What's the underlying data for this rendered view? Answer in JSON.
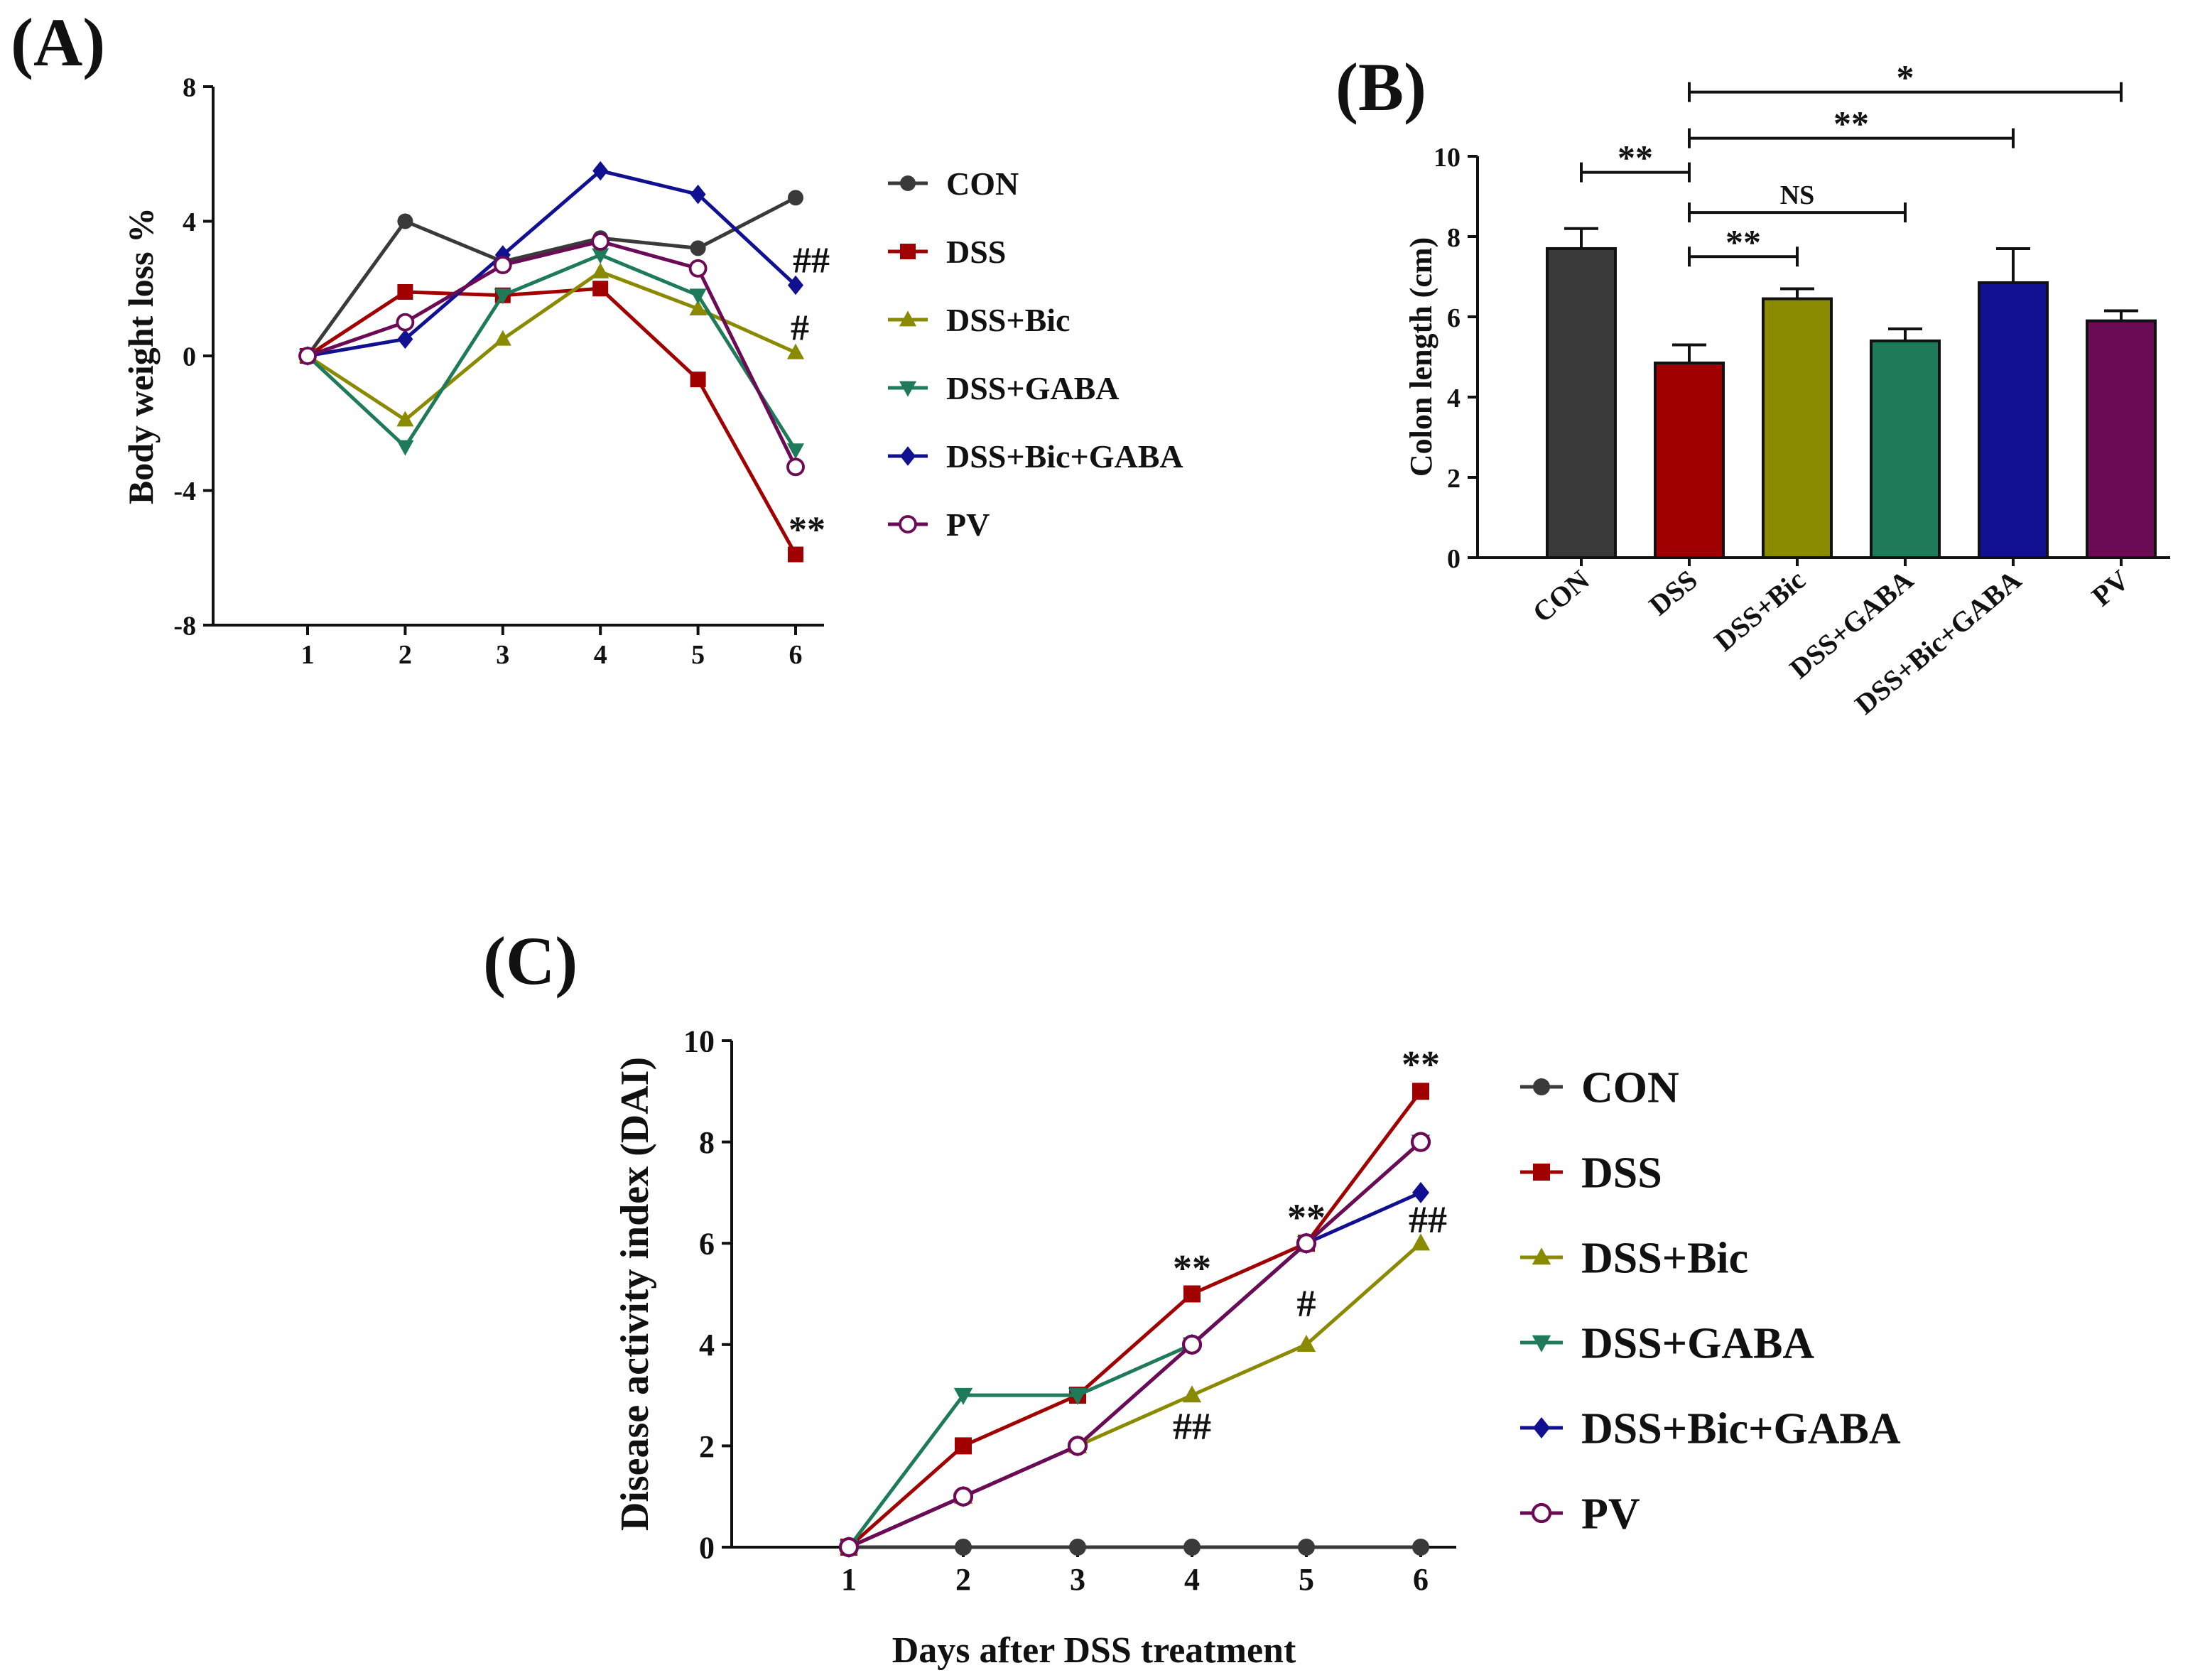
{
  "colors": {
    "CON": "#3a3a3a",
    "DSS": "#a00000",
    "DSS+Bic": "#8a8a00",
    "DSS+GABA": "#1f7a5a",
    "DSS+Bic+GABA": "#101090",
    "PV": "#6b0a55"
  },
  "chart_data": [
    {
      "panel_label": "(A)",
      "type": "line",
      "title": "",
      "xlabel": "",
      "ylabel": "Body weight loss %",
      "x": [
        1,
        2,
        3,
        4,
        5,
        6
      ],
      "x_tick_labels": [
        "1",
        "2",
        "3",
        "4",
        "5",
        "6"
      ],
      "ylim": [
        -8,
        8
      ],
      "y_ticks": [
        -8,
        -4,
        0,
        4,
        8
      ],
      "y_tick_labels": [
        "-8",
        "-4",
        "0",
        "4",
        "8"
      ],
      "legend_position": "right",
      "series": [
        {
          "name": "CON",
          "marker": "circle",
          "values": [
            0,
            4.0,
            2.8,
            3.5,
            3.2,
            4.7
          ]
        },
        {
          "name": "DSS",
          "marker": "square",
          "values": [
            0,
            1.9,
            1.8,
            2.0,
            -0.7,
            -5.9
          ]
        },
        {
          "name": "DSS+Bic",
          "marker": "triangle-up",
          "values": [
            0,
            -1.9,
            0.5,
            2.5,
            1.4,
            0.1
          ]
        },
        {
          "name": "DSS+GABA",
          "marker": "triangle-down",
          "values": [
            0,
            -2.7,
            1.8,
            3.0,
            1.8,
            -2.8
          ]
        },
        {
          "name": "DSS+Bic+GABA",
          "marker": "diamond",
          "values": [
            0,
            0.5,
            3.0,
            5.5,
            4.8,
            2.1
          ]
        },
        {
          "name": "PV",
          "marker": "circle-open",
          "values": [
            0,
            1.0,
            2.7,
            3.4,
            2.6,
            -3.3
          ]
        }
      ],
      "annotations": [
        {
          "text": "##",
          "x": 6,
          "y": 2.1
        },
        {
          "text": "#",
          "x": 6,
          "y": 0.1
        },
        {
          "text": "**",
          "x": 6,
          "y": -5.9
        }
      ]
    },
    {
      "panel_label": "(B)",
      "type": "bar",
      "title": "",
      "xlabel": "",
      "ylabel": "Colon length (cm)",
      "categories": [
        "CON",
        "DSS",
        "DSS+Bic",
        "DSS+GABA",
        "DSS+Bic+GABA",
        "PV"
      ],
      "values": [
        7.7,
        4.85,
        6.45,
        5.4,
        6.85,
        5.9
      ],
      "errors": [
        0.5,
        0.45,
        0.25,
        0.3,
        0.85,
        0.25
      ],
      "ylim": [
        0,
        10
      ],
      "y_ticks": [
        0,
        2,
        4,
        6,
        8,
        10
      ],
      "y_tick_labels": [
        "0",
        "2",
        "4",
        "6",
        "8",
        "10"
      ],
      "significance": [
        {
          "from": 0,
          "to": 1,
          "y": 9.6,
          "label": "**"
        },
        {
          "from": 1,
          "to": 2,
          "y": 7.5,
          "label": "**"
        },
        {
          "from": 1,
          "to": 3,
          "y": 8.6,
          "label": "NS"
        },
        {
          "from": 1,
          "to": 4,
          "y": 10.45,
          "label": "**"
        },
        {
          "from": 1,
          "to": 5,
          "y": 11.6,
          "label": "*"
        }
      ]
    },
    {
      "panel_label": "(C)",
      "type": "line",
      "title": "",
      "xlabel": "Days after DSS treatment",
      "ylabel": "Disease activity index (DAI)",
      "x": [
        1,
        2,
        3,
        4,
        5,
        6
      ],
      "x_tick_labels": [
        "1",
        "2",
        "3",
        "4",
        "5",
        "6"
      ],
      "ylim": [
        0,
        10
      ],
      "y_ticks": [
        0,
        2,
        4,
        6,
        8,
        10
      ],
      "y_tick_labels": [
        "0",
        "2",
        "4",
        "6",
        "8",
        "10"
      ],
      "legend_position": "right",
      "series": [
        {
          "name": "CON",
          "marker": "circle",
          "values": [
            0,
            0,
            0,
            0,
            0,
            0
          ]
        },
        {
          "name": "DSS",
          "marker": "square",
          "values": [
            0,
            2,
            3,
            5,
            6,
            9
          ]
        },
        {
          "name": "DSS+Bic",
          "marker": "triangle-up",
          "values": [
            0,
            1,
            2,
            3,
            4,
            6
          ]
        },
        {
          "name": "DSS+GABA",
          "marker": "triangle-down",
          "values": [
            0,
            3,
            3,
            4,
            6,
            8
          ]
        },
        {
          "name": "DSS+Bic+GABA",
          "marker": "diamond",
          "values": [
            0,
            1,
            2,
            4,
            6,
            7
          ]
        },
        {
          "name": "PV",
          "marker": "circle-open",
          "values": [
            0,
            1,
            2,
            4,
            6,
            8
          ]
        }
      ],
      "annotations": [
        {
          "text": "**",
          "x": 4,
          "y": 5.0
        },
        {
          "text": "##",
          "x": 4,
          "y": 3.0
        },
        {
          "text": "**",
          "x": 5,
          "y": 6.0
        },
        {
          "text": "#",
          "x": 5,
          "y": 4.0
        },
        {
          "text": "**",
          "x": 6,
          "y": 9.0
        },
        {
          "text": "##",
          "x": 6,
          "y": 6.0
        }
      ]
    }
  ]
}
